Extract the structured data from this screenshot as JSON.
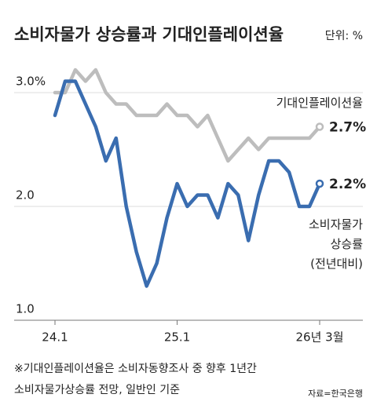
{
  "chart_data": {
    "type": "line",
    "title": "소비자물가 상승률과 기대인플레이션율",
    "unit": "단위: %",
    "x": [
      0,
      1,
      2,
      3,
      4,
      5,
      6,
      7,
      8,
      9,
      10,
      11,
      12,
      13,
      14,
      15,
      16,
      17,
      18,
      19,
      20,
      21,
      22,
      23,
      24,
      25,
      26
    ],
    "xlim": [
      0,
      26
    ],
    "xticks": [
      {
        "value": 0,
        "label": "24.1"
      },
      {
        "value": 12,
        "label": "25.1"
      },
      {
        "value": 26,
        "label": "26년 3월"
      }
    ],
    "ylim": [
      1.0,
      3.3
    ],
    "yticks": [
      {
        "value": 1.0,
        "label": "1.0"
      },
      {
        "value": 2.0,
        "label": "2.0"
      },
      {
        "value": 3.0,
        "label": "3.0%"
      }
    ],
    "grid": true,
    "series": [
      {
        "name": "기대인플레이션율",
        "color": "#bdbdbd",
        "values": [
          3.0,
          3.0,
          3.2,
          3.1,
          3.2,
          3.0,
          2.9,
          2.9,
          2.8,
          2.8,
          2.8,
          2.9,
          2.8,
          2.8,
          2.7,
          2.8,
          2.6,
          2.4,
          2.5,
          2.6,
          2.5,
          2.6,
          2.6,
          2.6,
          2.6,
          2.6,
          2.7
        ],
        "value_labels": [
          null,
          null,
          null,
          null,
          null,
          null,
          null,
          null,
          null,
          null,
          null,
          null,
          null,
          null,
          null,
          null,
          null,
          null,
          null,
          null,
          null,
          null,
          null,
          null,
          null,
          null,
          "2.7%"
        ]
      },
      {
        "name": "소비자물가\n상승률\n(전년대비)",
        "color": "#3a6db0",
        "values": [
          2.8,
          3.1,
          3.1,
          2.9,
          2.7,
          2.4,
          2.6,
          2.0,
          1.6,
          1.3,
          1.5,
          1.9,
          2.2,
          2.0,
          2.1,
          2.1,
          1.9,
          2.2,
          2.1,
          1.7,
          2.1,
          2.4,
          2.4,
          2.3,
          2.0,
          2.0,
          2.2
        ],
        "value_labels": [
          null,
          null,
          null,
          null,
          null,
          null,
          null,
          null,
          null,
          null,
          null,
          null,
          null,
          null,
          null,
          null,
          null,
          null,
          null,
          null,
          null,
          null,
          null,
          null,
          null,
          null,
          "2.2%"
        ]
      }
    ],
    "footnote": [
      "※기대인플레이션율은 소비자동향조사 중 향후 1년간",
      "소비자물가상승률 전망, 일반인 기준"
    ],
    "source": "자료=한국은행"
  }
}
